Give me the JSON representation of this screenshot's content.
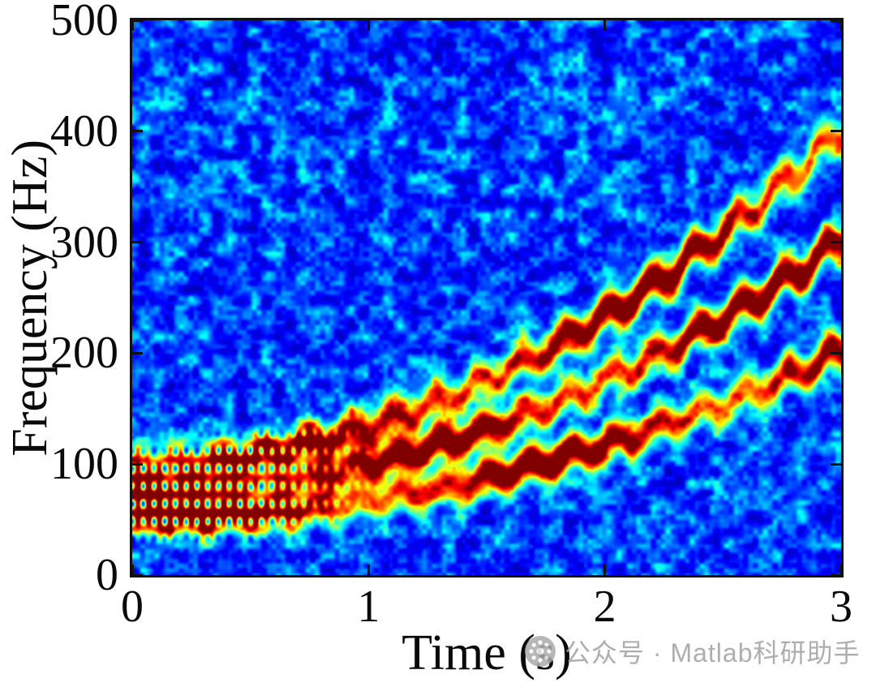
{
  "figure": {
    "background": "#ffffff"
  },
  "chart_data": {
    "type": "heatmap",
    "subtype": "spectrogram",
    "title": "",
    "xlabel": "Time (s)",
    "ylabel": "Frequency (Hz)",
    "xlim": [
      0,
      3
    ],
    "ylim": [
      0,
      500
    ],
    "x_ticks": [
      0,
      1,
      2,
      3
    ],
    "y_ticks": [
      0,
      100,
      200,
      300,
      400,
      500
    ],
    "grid": false,
    "legend": "none",
    "colormap": "jet",
    "background_noise_floor": 0.05,
    "ridge_sigma_hz": 11,
    "components": [
      {
        "name": "chirp-harmonic-1",
        "f_start_hz": 50,
        "f_end_hz": 200,
        "trend": "quadratic",
        "ripple_hz": 8,
        "ripple_rate_hz": 5.5,
        "phase": 0.0
      },
      {
        "name": "chirp-harmonic-2",
        "f_start_hz": 75,
        "f_end_hz": 300,
        "trend": "quadratic",
        "ripple_hz": 9,
        "ripple_rate_hz": 5.5,
        "phase": 0.6
      },
      {
        "name": "chirp-harmonic-3",
        "f_start_hz": 100,
        "f_end_hz": 400,
        "trend": "quadratic",
        "ripple_hz": 10,
        "ripple_rate_hz": 5.5,
        "phase": 1.2
      }
    ],
    "interference_dots": {
      "visible_until_s": 1.1,
      "t_rate_hz": 22,
      "f_period_hz": 16,
      "depth": 0.93
    }
  },
  "axis_style": {
    "color": "#111111",
    "tick_label_color": "#0a0a0a"
  },
  "watermark": {
    "icon": "wechat-official-account-icon",
    "text": "公众号 · Matlab科研助手",
    "color": "#a0a0a0"
  }
}
